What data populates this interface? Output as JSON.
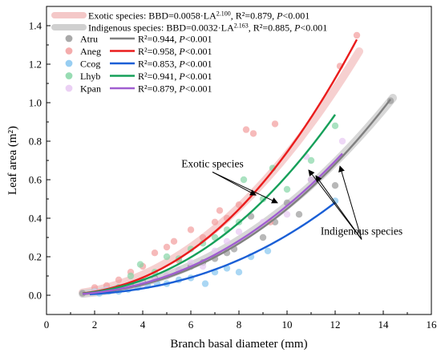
{
  "chart_data": {
    "type": "scatter",
    "xlabel": "Branch basal diameter (mm)",
    "ylabel": "Leaf area (m²)",
    "xlim": [
      0,
      16
    ],
    "ylim": [
      -0.1,
      1.5
    ],
    "xticks": [
      0,
      2,
      4,
      6,
      8,
      10,
      12,
      14,
      16
    ],
    "yticks": [
      0.0,
      0.2,
      0.4,
      0.6,
      0.8,
      1.0,
      1.2,
      1.4
    ],
    "xtick_labels": [
      "0",
      "2",
      "4",
      "6",
      "8",
      "10",
      "12",
      "14",
      "16"
    ],
    "ytick_labels": [
      "0.0",
      "0.2",
      "0.4",
      "0.6",
      "0.8",
      "1.0",
      "1.2",
      "1.4"
    ],
    "legend_position": "top-left",
    "grid": false,
    "group_fits": [
      {
        "name": "Exotic species",
        "label_prefix": "Exotic species: BBD=0.0058·LA",
        "exp": "2.100",
        "label_mid": ", R²=0.879, ",
        "p": "P",
        "label_end": "<0.001",
        "a": 0.0058,
        "b": 2.1,
        "x_range": [
          1.5,
          13.0
        ],
        "color": "#f4c8c8"
      },
      {
        "name": "Indigenous species",
        "label_prefix": "Indigenous species: BBD=0.0032·LA",
        "exp": "2.163",
        "label_mid": ", R²=0.885, ",
        "p": "P",
        "label_end": "<0.001",
        "a": 0.0032,
        "b": 2.163,
        "x_range": [
          1.5,
          14.4
        ],
        "color": "#d0d0d0"
      }
    ],
    "series": [
      {
        "name": "Atru",
        "r2_text": "R²=0.944, ",
        "p": "P",
        "p_text": "<0.001",
        "color": "#9a9a9a",
        "line_color": "#808080",
        "fit": {
          "a": 0.0023,
          "b": 2.29,
          "x_range": [
            1.5,
            14.3
          ]
        },
        "x": [
          1.5,
          2.0,
          2.5,
          3.0,
          3.5,
          4.0,
          4.5,
          5.0,
          5.5,
          6.0,
          6.5,
          7.0,
          7.5,
          7.8,
          8.5,
          9.0,
          9.5,
          10.0,
          10.5,
          11.0,
          12.0,
          14.3
        ],
        "y": [
          0.01,
          0.02,
          0.03,
          0.04,
          0.05,
          0.07,
          0.09,
          0.1,
          0.13,
          0.15,
          0.17,
          0.19,
          0.22,
          0.24,
          0.41,
          0.3,
          0.38,
          0.48,
          0.42,
          0.6,
          0.57,
          1.01
        ]
      },
      {
        "name": "Aneg",
        "r2_text": "R²=0.958, ",
        "p": "P",
        "p_text": "<0.001",
        "color": "#f29d9d",
        "line_color": "#ea1c1c",
        "fit": {
          "a": 0.0039,
          "b": 2.28,
          "x_range": [
            1.5,
            12.9
          ]
        },
        "x": [
          2.0,
          2.5,
          3.0,
          3.5,
          4.0,
          4.5,
          5.0,
          5.3,
          5.5,
          6.0,
          6.5,
          7.0,
          7.2,
          7.5,
          8.0,
          8.3,
          8.6,
          9.3,
          9.5,
          12.2,
          12.9
        ],
        "y": [
          0.04,
          0.05,
          0.08,
          0.12,
          0.15,
          0.22,
          0.25,
          0.28,
          0.18,
          0.34,
          0.3,
          0.38,
          0.44,
          0.4,
          0.47,
          0.86,
          0.84,
          0.38,
          0.89,
          1.19,
          1.35
        ]
      },
      {
        "name": "Ccog",
        "r2_text": "R²=0.853, ",
        "p": "P",
        "p_text": "<0.001",
        "color": "#86c6f0",
        "line_color": "#1a5fd6",
        "fit": {
          "a": 0.0013,
          "b": 2.38,
          "x_range": [
            1.8,
            12.0
          ]
        },
        "x": [
          2.2,
          2.6,
          3.0,
          3.4,
          3.8,
          4.2,
          4.6,
          5.0,
          5.5,
          6.0,
          6.6,
          7.0,
          7.5,
          8.0,
          8.5,
          9.2,
          12.0
        ],
        "y": [
          0.01,
          0.02,
          0.02,
          0.03,
          0.04,
          0.05,
          0.06,
          0.06,
          0.08,
          0.09,
          0.06,
          0.12,
          0.14,
          0.12,
          0.2,
          0.23,
          0.49
        ]
      },
      {
        "name": "Lhyb",
        "r2_text": "R²=0.941, ",
        "p": "P",
        "p_text": "<0.001",
        "color": "#86d6a6",
        "line_color": "#16a05a",
        "fit": {
          "a": 0.0035,
          "b": 2.25,
          "x_range": [
            1.5,
            12.0
          ]
        },
        "x": [
          2.0,
          2.5,
          3.0,
          3.5,
          3.9,
          4.5,
          5.0,
          5.5,
          6.0,
          6.5,
          7.0,
          7.5,
          8.0,
          8.2,
          9.0,
          9.4,
          10.0,
          11.0,
          12.0
        ],
        "y": [
          0.02,
          0.03,
          0.04,
          0.1,
          0.16,
          0.12,
          0.2,
          0.19,
          0.24,
          0.27,
          0.3,
          0.34,
          0.38,
          0.6,
          0.5,
          0.66,
          0.55,
          0.7,
          0.88
        ]
      },
      {
        "name": "Kpan",
        "r2_text": "R²=0.879, ",
        "p": "P",
        "p_text": "<0.001",
        "color": "#e7c8f2",
        "line_color": "#a05ed0",
        "fit": {
          "a": 0.0028,
          "b": 2.22,
          "x_range": [
            1.5,
            12.3
          ]
        },
        "x": [
          2.0,
          2.5,
          3.0,
          3.5,
          4.0,
          4.5,
          5.0,
          5.5,
          6.0,
          6.5,
          7.0,
          7.5,
          8.0,
          9.0,
          10.0,
          10.8,
          11.0,
          12.3
        ],
        "y": [
          0.02,
          0.03,
          0.03,
          0.04,
          0.06,
          0.08,
          0.1,
          0.13,
          0.17,
          0.15,
          0.23,
          0.28,
          0.33,
          0.38,
          0.42,
          0.72,
          0.6,
          0.8
        ]
      }
    ],
    "annotations": [
      {
        "text": "Exotic species",
        "position": [
          6.9,
          0.64
        ],
        "targets": [
          [
            8.7,
            0.52
          ],
          [
            9.6,
            0.48
          ]
        ]
      },
      {
        "text": "Indigenous species",
        "position": [
          13.1,
          0.29
        ],
        "targets": [
          [
            10.9,
            0.65
          ],
          [
            11.2,
            0.62
          ],
          [
            12.2,
            0.67
          ]
        ]
      }
    ]
  }
}
